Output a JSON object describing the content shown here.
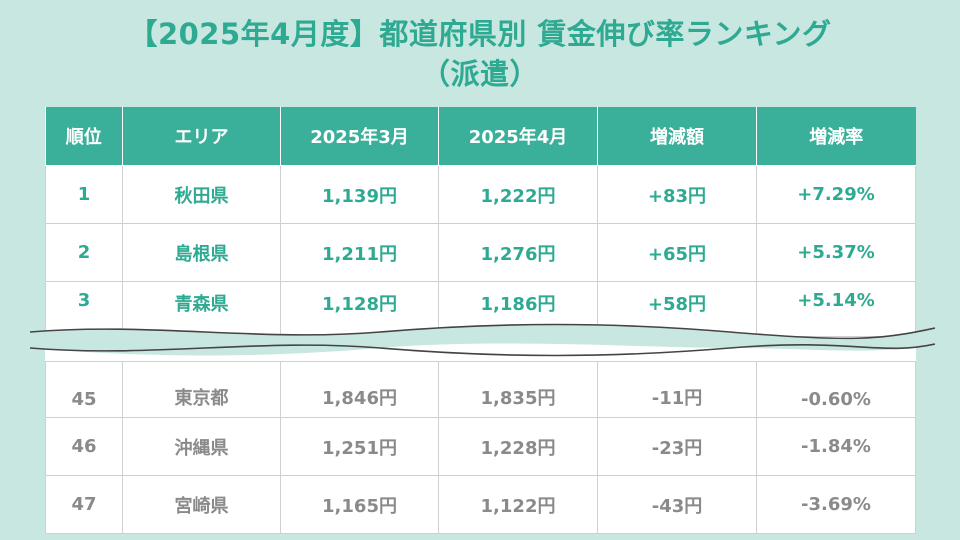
{
  "title": {
    "line1": "【2025年4月度】都道府県別 賃金伸び率ランキング",
    "line2": "（派遣）"
  },
  "table": {
    "headers": [
      "順位",
      "エリア",
      "2025年3月",
      "2025年4月",
      "増減額",
      "増減率"
    ],
    "top_rows": [
      {
        "rank": "1",
        "area": "秋田県",
        "mar": "1,139円",
        "apr": "1,222円",
        "diff": "+83円",
        "rate": "+7.29%"
      },
      {
        "rank": "2",
        "area": "島根県",
        "mar": "1,211円",
        "apr": "1,276円",
        "diff": "+65円",
        "rate": "+5.37%"
      },
      {
        "rank": "3",
        "area": "青森県",
        "mar": "1,128円",
        "apr": "1,186円",
        "diff": "+58円",
        "rate": "+5.14%"
      }
    ],
    "bottom_rows": [
      {
        "rank": "45",
        "area": "東京都",
        "mar": "1,846円",
        "apr": "1,835円",
        "diff": "-11円",
        "rate": "-0.60%"
      },
      {
        "rank": "46",
        "area": "沖縄県",
        "mar": "1,251円",
        "apr": "1,228円",
        "diff": "-23円",
        "rate": "-1.84%"
      },
      {
        "rank": "47",
        "area": "宮崎県",
        "mar": "1,165円",
        "apr": "1,122円",
        "diff": "-43円",
        "rate": "-3.69%"
      }
    ]
  },
  "colors": {
    "background": "#c9e7e1",
    "accent": "#3aaf9a",
    "top_text": "#2eaa92",
    "bottom_text": "#8a8a8a"
  }
}
